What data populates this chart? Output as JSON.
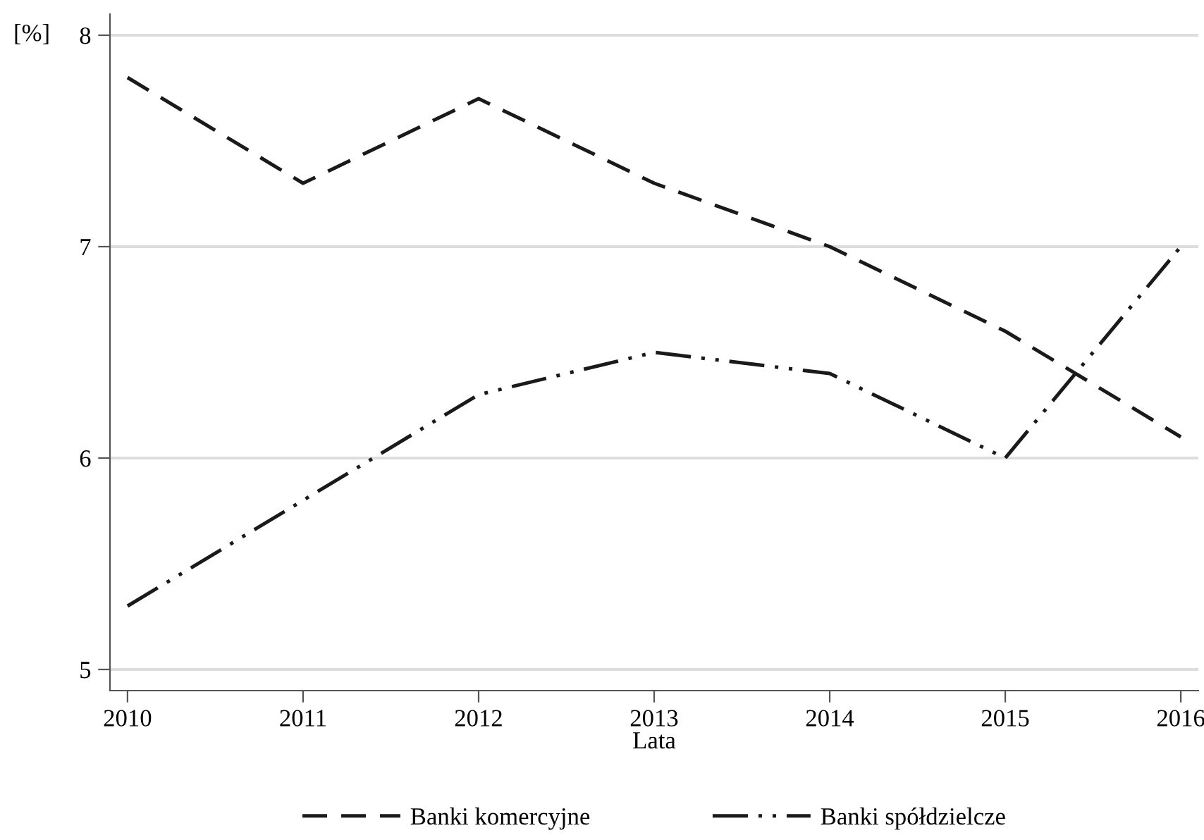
{
  "chart_data": {
    "type": "line",
    "ylabel": "[%]",
    "xlabel": "Lata",
    "x": [
      2010,
      2011,
      2012,
      2013,
      2014,
      2015,
      2016
    ],
    "series": [
      {
        "name": "Banki komercyjne",
        "color": "#1a1a1a",
        "line_style": "dashed",
        "values": [
          7.8,
          7.3,
          7.7,
          7.3,
          7.0,
          6.6,
          6.1
        ]
      },
      {
        "name": "Banki spółdzielcze",
        "color": "#1a1a1a",
        "line_style": "dotted",
        "values": [
          5.3,
          5.8,
          6.3,
          6.5,
          6.4,
          6.0,
          7.0
        ]
      }
    ],
    "xlim": [
      2009.9,
      2016.1
    ],
    "xticks": [
      2010,
      2011,
      2012,
      2013,
      2014,
      2015,
      2016
    ],
    "ylim": [
      4.9,
      8.1
    ],
    "yticks": [
      5,
      6,
      7,
      8
    ],
    "grid": "y",
    "legend": "bottom",
    "marker": "none"
  }
}
